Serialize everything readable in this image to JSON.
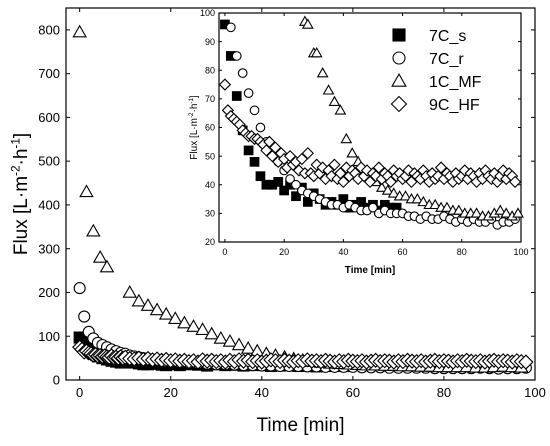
{
  "chart_data": [
    {
      "type": "scatter",
      "panel": "main",
      "title": "",
      "xlabel": "Time [min]",
      "ylabel": "Flux [L·m⁻²·h⁻¹]",
      "xlim": [
        -3,
        100
      ],
      "ylim": [
        0,
        850
      ],
      "xticks": [
        0,
        20,
        40,
        60,
        80,
        100
      ],
      "yticks": [
        0,
        100,
        200,
        300,
        400,
        500,
        600,
        700,
        800
      ],
      "legend": "none",
      "series": [
        {
          "marker": "square-filled",
          "x": [
            0,
            1,
            2,
            3,
            4,
            5,
            6,
            7,
            8,
            9,
            10,
            11,
            12,
            13,
            14,
            15,
            16,
            17,
            18,
            19,
            20,
            22,
            24,
            26,
            28,
            30,
            32,
            34,
            36,
            38,
            40,
            42,
            44,
            46,
            48,
            50,
            52,
            54,
            56,
            58
          ],
          "y": [
            97,
            86,
            72,
            60,
            54,
            50,
            47,
            44,
            42,
            40,
            40,
            41,
            40,
            38,
            36,
            36,
            38,
            37,
            35,
            34,
            36,
            34,
            36,
            35,
            33,
            36,
            34,
            35,
            33,
            34,
            35,
            32,
            33,
            34,
            32,
            33,
            31,
            32,
            33,
            32
          ]
        },
        {
          "marker": "circle-open",
          "x": [
            0,
            1,
            2,
            3,
            4,
            5,
            6,
            7,
            8,
            9,
            10,
            11,
            12,
            13,
            14,
            15,
            16,
            17,
            18,
            19,
            20,
            22,
            24,
            26,
            28,
            30,
            32,
            34,
            36,
            38,
            40,
            42,
            44,
            46,
            48,
            50,
            52,
            54,
            56,
            58,
            60,
            62,
            64,
            66,
            68,
            70,
            72,
            74,
            76,
            78,
            80,
            82,
            84,
            86,
            88,
            90,
            92,
            94,
            96,
            98
          ],
          "y": [
            210,
            145,
            110,
            95,
            85,
            80,
            75,
            70,
            66,
            62,
            60,
            56,
            54,
            52,
            50,
            48,
            47,
            45,
            44,
            42,
            41,
            40,
            39,
            38,
            37,
            36,
            36,
            35,
            34,
            34,
            33,
            33,
            32,
            32,
            32,
            31,
            31,
            30,
            30,
            30,
            30,
            29,
            29,
            29,
            28,
            28,
            28,
            28,
            28,
            27,
            27,
            27,
            27,
            27,
            28,
            27,
            26,
            27,
            27,
            28
          ]
        },
        {
          "marker": "triangle-open",
          "x": [
            0,
            1.5,
            3,
            4.5,
            6,
            11,
            13,
            15,
            17,
            19,
            21,
            23,
            25,
            27,
            29,
            31,
            33,
            35,
            37,
            39,
            41,
            43,
            45,
            47,
            49,
            51,
            53,
            55,
            57,
            59,
            61,
            63,
            65,
            67,
            69,
            71,
            73,
            75,
            77,
            79,
            81,
            83,
            85,
            87,
            89,
            91,
            93,
            95,
            97
          ],
          "y": [
            795,
            430,
            340,
            280,
            258,
            200,
            180,
            170,
            160,
            150,
            140,
            130,
            122,
            115,
            105,
            95,
            88,
            80,
            72,
            66,
            60,
            56,
            52,
            48,
            45,
            42,
            40,
            38,
            37,
            36,
            35,
            34,
            34,
            33,
            33,
            32,
            32,
            31,
            31,
            30,
            30,
            30,
            30,
            29,
            29,
            30,
            31,
            30,
            29
          ]
        },
        {
          "marker": "diamond-open",
          "x": [
            0,
            0.5,
            1,
            1.5,
            2,
            2.5,
            3,
            3.5,
            4,
            4.5,
            5,
            5.5,
            6,
            6.5,
            7,
            7.5,
            8,
            8.5,
            9,
            9.5,
            10,
            11,
            12,
            13,
            14,
            15,
            16,
            17,
            18,
            19,
            20,
            21,
            22,
            23,
            24,
            25,
            26,
            27,
            28,
            29,
            30,
            31,
            32,
            33,
            34,
            35,
            36,
            37,
            38,
            39,
            40,
            41,
            42,
            43,
            44,
            45,
            46,
            47,
            48,
            49,
            50,
            51,
            52,
            53,
            54,
            55,
            56,
            57,
            58,
            59,
            60,
            61,
            62,
            63,
            64,
            65,
            66,
            67,
            68,
            69,
            70,
            71,
            72,
            73,
            74,
            75,
            76,
            77,
            78,
            79,
            80,
            81,
            82,
            83,
            84,
            85,
            86,
            87,
            88,
            89,
            90,
            91,
            92,
            93,
            94,
            95,
            96,
            97,
            98
          ],
          "y": [
            75,
            70,
            64,
            66,
            62,
            60,
            57,
            58,
            55,
            56,
            54,
            55,
            53,
            52,
            55,
            51,
            52,
            50,
            53,
            50,
            52,
            49,
            48,
            50,
            47,
            49,
            46,
            48,
            45,
            47,
            44,
            46,
            43,
            45,
            42,
            44,
            41,
            46,
            43,
            45,
            42,
            44,
            41,
            45,
            42,
            46,
            43,
            45,
            42,
            44,
            41,
            43,
            46,
            44,
            42,
            45,
            43,
            41,
            44,
            42,
            46,
            43,
            44,
            42,
            45,
            43,
            41,
            44,
            42,
            45,
            43,
            42,
            44,
            41,
            43,
            45,
            42,
            44,
            43,
            41,
            44,
            42,
            45,
            43,
            42,
            44,
            41,
            43,
            45,
            42,
            44,
            43,
            41,
            44,
            42,
            45,
            43,
            42,
            44,
            41,
            43,
            45,
            42,
            44,
            43,
            41,
            44,
            42,
            41
          ]
        }
      ]
    },
    {
      "type": "scatter",
      "panel": "inset",
      "title": "",
      "xlabel": "Time [min]",
      "ylabel": "Flux [L·m⁻²·h⁻¹]",
      "xlim": [
        -2,
        100
      ],
      "ylim": [
        20,
        100
      ],
      "xticks": [
        0,
        20,
        40,
        60,
        80,
        100
      ],
      "yticks": [
        20,
        30,
        40,
        50,
        60,
        70,
        80,
        90,
        100
      ],
      "legend": "top-right",
      "legend_entries": [
        "7C_s",
        "7C_r",
        "1C_MF",
        "9C_HF"
      ],
      "series": [
        {
          "name": "7C_s",
          "marker": "square-filled",
          "x": [
            0,
            2,
            4,
            6,
            8,
            10,
            12,
            14,
            16,
            18,
            20,
            22,
            24,
            26,
            28,
            30,
            32,
            34,
            36,
            38,
            40,
            42,
            44,
            46,
            48,
            50,
            52,
            54,
            56,
            58
          ],
          "y": [
            96,
            85,
            71,
            59,
            52,
            48,
            43,
            40,
            40,
            41,
            38,
            40,
            36,
            39,
            34,
            37,
            35,
            33,
            34,
            33,
            35,
            32,
            33,
            34,
            32,
            33,
            31,
            33,
            32,
            32
          ]
        },
        {
          "name": "7C_r",
          "marker": "circle-open",
          "x": [
            2,
            4,
            6,
            8,
            10,
            12,
            14,
            16,
            18,
            20,
            22,
            24,
            26,
            28,
            30,
            32,
            34,
            36,
            38,
            40,
            42,
            44,
            46,
            48,
            50,
            52,
            54,
            56,
            58,
            60,
            62,
            64,
            66,
            68,
            70,
            72,
            74,
            76,
            78,
            80,
            82,
            84,
            86,
            88,
            90,
            92,
            94,
            96,
            98
          ],
          "y": [
            95,
            85,
            79,
            72,
            66,
            60,
            55,
            52,
            48,
            45,
            42,
            40,
            38,
            37,
            36,
            35,
            34,
            33,
            33,
            32,
            33,
            32,
            31,
            31,
            32,
            30,
            31,
            30,
            30,
            30,
            29,
            29,
            28,
            29,
            28,
            28,
            29,
            28,
            27,
            28,
            27,
            28,
            27,
            27,
            28,
            26,
            27,
            27,
            28
          ]
        },
        {
          "name": "1C_MF",
          "marker": "triangle-open",
          "x": [
            27,
            28,
            30,
            31,
            33,
            35,
            37,
            39,
            41,
            43,
            45,
            47,
            49,
            51,
            53,
            55,
            57,
            59,
            61,
            63,
            65,
            67,
            69,
            71,
            73,
            75,
            77,
            79,
            81,
            83,
            85,
            87,
            89,
            91,
            93,
            95,
            97,
            99
          ],
          "y": [
            97,
            96,
            86,
            86,
            79,
            73,
            69,
            66,
            56,
            51,
            48,
            45,
            43,
            41,
            39,
            38,
            37,
            36,
            36,
            35,
            35,
            34,
            33,
            33,
            32,
            32,
            31,
            31,
            30,
            30,
            30,
            29,
            29,
            30,
            31,
            30,
            29,
            30
          ]
        },
        {
          "name": "9C_HF",
          "marker": "diamond-open",
          "x": [
            0,
            1,
            2,
            3,
            4,
            5,
            6,
            7,
            8,
            9,
            10,
            11,
            12,
            13,
            14,
            15,
            16,
            17,
            18,
            19,
            20,
            21,
            22,
            23,
            24,
            25,
            26,
            27,
            28,
            29,
            30,
            31,
            32,
            33,
            34,
            35,
            36,
            37,
            38,
            39,
            40,
            41,
            42,
            43,
            44,
            45,
            46,
            47,
            48,
            49,
            50,
            51,
            52,
            53,
            54,
            55,
            56,
            57,
            58,
            59,
            60,
            61,
            62,
            63,
            64,
            65,
            66,
            67,
            68,
            69,
            70,
            71,
            72,
            73,
            74,
            75,
            76,
            77,
            78,
            79,
            80,
            81,
            82,
            83,
            84,
            85,
            86,
            87,
            88,
            89,
            90,
            91,
            92,
            93,
            94,
            95,
            96,
            97,
            98
          ],
          "y": [
            75,
            66,
            64,
            63,
            62,
            61,
            59,
            58,
            57,
            57,
            56,
            56,
            55,
            54,
            52,
            55,
            50,
            53,
            48,
            51,
            49,
            46,
            50,
            47,
            48,
            45,
            49,
            44,
            51,
            44,
            43,
            47,
            44,
            46,
            42,
            45,
            43,
            47,
            42,
            44,
            41,
            46,
            43,
            45,
            44,
            42,
            46,
            43,
            45,
            41,
            44,
            43,
            46,
            42,
            44,
            43,
            41,
            45,
            43,
            44,
            42,
            43,
            45,
            41,
            44,
            43,
            42,
            45,
            43,
            41,
            44,
            42,
            43,
            46,
            42,
            44,
            43,
            41,
            44,
            42,
            43,
            45,
            42,
            44,
            43,
            41,
            44,
            42,
            45,
            43,
            42,
            44,
            41,
            43,
            45,
            42,
            44,
            43,
            41
          ]
        }
      ]
    }
  ]
}
